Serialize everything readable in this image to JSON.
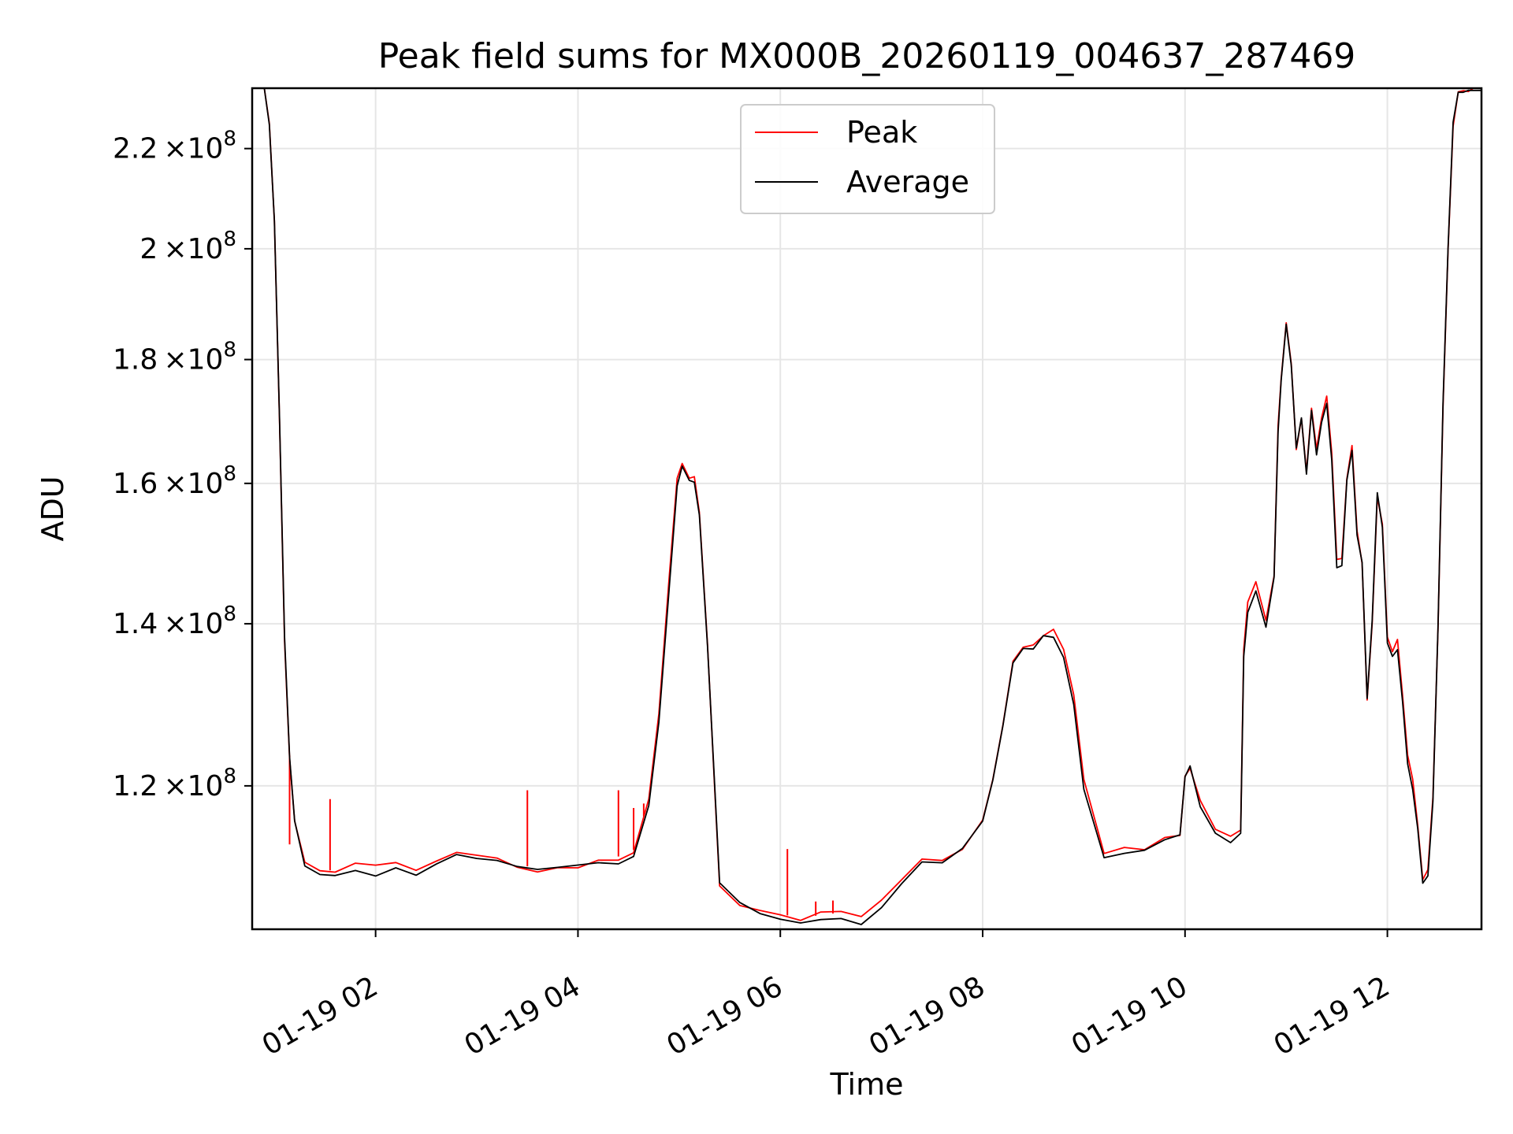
{
  "chart_data": {
    "type": "line",
    "title": "Peak field sums for MX000B_20260119_004637_287469",
    "xlabel": "Time",
    "ylabel": "ADU",
    "x_unit": "hours since 2026-01-19 00:00",
    "xlim": [
      0.78,
      12.93
    ],
    "ylim": [
      104700000.0,
      233000000.0
    ],
    "y_scale": "log",
    "grid": true,
    "legend_position": "top-center",
    "x_ticks": [
      {
        "value": 2,
        "label": "01-19 02"
      },
      {
        "value": 4,
        "label": "01-19 04"
      },
      {
        "value": 6,
        "label": "01-19 06"
      },
      {
        "value": 8,
        "label": "01-19 08"
      },
      {
        "value": 10,
        "label": "01-19 10"
      },
      {
        "value": 12,
        "label": "01-19 12"
      }
    ],
    "y_ticks": [
      {
        "value": 120000000.0,
        "mantissa": "1.2",
        "exponent": "8"
      },
      {
        "value": 140000000.0,
        "mantissa": "1.4",
        "exponent": "8"
      },
      {
        "value": 160000000.0,
        "mantissa": "1.6",
        "exponent": "8"
      },
      {
        "value": 180000000.0,
        "mantissa": "1.8",
        "exponent": "8"
      },
      {
        "value": 200000000.0,
        "mantissa": "2",
        "exponent": "8"
      },
      {
        "value": 220000000.0,
        "mantissa": "2.2",
        "exponent": "8"
      }
    ],
    "tick_times": "×10",
    "x": [
      0.78,
      0.9,
      0.95,
      1.0,
      1.05,
      1.1,
      1.15,
      1.2,
      1.3,
      1.45,
      1.6,
      1.8,
      2.0,
      2.2,
      2.4,
      2.6,
      2.8,
      3.0,
      3.2,
      3.4,
      3.6,
      3.8,
      4.0,
      4.2,
      4.4,
      4.55,
      4.7,
      4.8,
      4.9,
      4.98,
      5.03,
      5.1,
      5.15,
      5.2,
      5.28,
      5.35,
      5.4,
      5.6,
      5.8,
      6.0,
      6.2,
      6.4,
      6.6,
      6.8,
      7.0,
      7.2,
      7.4,
      7.6,
      7.8,
      8.0,
      8.1,
      8.2,
      8.3,
      8.4,
      8.5,
      8.6,
      8.7,
      8.8,
      8.9,
      9.0,
      9.2,
      9.4,
      9.6,
      9.8,
      9.95,
      10.0,
      10.05,
      10.15,
      10.3,
      10.45,
      10.55,
      10.58,
      10.62,
      10.7,
      10.8,
      10.88,
      10.92,
      10.95,
      11.0,
      11.05,
      11.1,
      11.15,
      11.2,
      11.25,
      11.3,
      11.35,
      11.4,
      11.45,
      11.5,
      11.55,
      11.6,
      11.65,
      11.7,
      11.75,
      11.8,
      11.85,
      11.9,
      11.95,
      12.0,
      12.05,
      12.1,
      12.15,
      12.2,
      12.25,
      12.3,
      12.35,
      12.4,
      12.45,
      12.5,
      12.55,
      12.6,
      12.65,
      12.7,
      12.75,
      12.8,
      12.85,
      12.93
    ],
    "series": [
      {
        "name": "Average",
        "color": "#000000",
        "values": [
          233000000.0,
          233000000.0,
          225000000.0,
          205000000.0,
          170000000.0,
          138000000.0,
          123000000.0,
          116000000.0,
          111500000.0,
          110500000.0,
          110200000.0,
          110800000.0,
          110500000.0,
          111000000.0,
          110300000.0,
          111200000.0,
          112000000.0,
          111800000.0,
          111500000.0,
          111000000.0,
          110500000.0,
          110800000.0,
          111000000.0,
          111800000.0,
          111800000.0,
          112500000.0,
          118000000.0,
          128000000.0,
          145000000.0,
          160000000.0,
          162000000.0,
          160000000.0,
          160000000.0,
          155000000.0,
          137000000.0,
          120000000.0,
          109000000.0,
          107000000.0,
          106500000.0,
          105800000.0,
          105500000.0,
          105700000.0,
          106000000.0,
          105500000.0,
          107000000.0,
          109000000.0,
          111500000.0,
          111300000.0,
          113000000.0,
          116000000.0,
          120500000.0,
          127000000.0,
          135000000.0,
          137000000.0,
          137000000.0,
          138500000.0,
          138500000.0,
          136000000.0,
          130000000.0,
          120000000.0,
          112000000.0,
          112500000.0,
          112500000.0,
          114000000.0,
          114500000.0,
          121000000.0,
          122000000.0,
          118000000.0,
          115000000.0,
          114000000.0,
          115000000.0,
          136000000.0,
          142000000.0,
          145000000.0,
          140000000.0,
          146000000.0,
          168000000.0,
          176000000.0,
          186000000.0,
          179000000.0,
          165000000.0,
          170000000.0,
          162000000.0,
          172000000.0,
          165000000.0,
          170000000.0,
          173000000.0,
          164000000.0,
          148000000.0,
          148000000.0,
          160000000.0,
          165000000.0,
          152000000.0,
          148000000.0,
          130000000.0,
          140000000.0,
          158000000.0,
          154000000.0,
          138000000.0,
          136000000.0,
          137000000.0,
          130000000.0,
          123000000.0,
          120000000.0,
          115000000.0,
          109000000.0,
          110000000.0,
          118000000.0,
          139000000.0,
          172000000.0,
          200000000.0,
          225000000.0,
          233000000.0,
          233000000.0,
          233000000.0,
          233000000.0,
          233000000.0
        ]
      },
      {
        "name": "Peak",
        "color": "#ff0000",
        "values": [
          233000000.0,
          233000000.0,
          225000000.0,
          205000000.0,
          170000000.0,
          138000000.0,
          123500000.0,
          116200000.0,
          112000000.0,
          111000000.0,
          110600000.0,
          111200000.0,
          110900000.0,
          111400000.0,
          110700000.0,
          111600000.0,
          112400000.0,
          112200000.0,
          111900000.0,
          111400000.0,
          110900000.0,
          111200000.0,
          111400000.0,
          112200000.0,
          112200000.0,
          112900000.0,
          118400000.0,
          128400000.0,
          145500000.0,
          160500000.0,
          162500000.0,
          160500000.0,
          160500000.0,
          155500000.0,
          137500000.0,
          120400000.0,
          109400000.0,
          107400000.0,
          106900000.0,
          106200000.0,
          105900000.0,
          106100000.0,
          106400000.0,
          105900000.0,
          107400000.0,
          109400000.0,
          111900000.0,
          111700000.0,
          113400000.0,
          116400000.0,
          120900000.0,
          127400000.0,
          135400000.0,
          137400000.0,
          137400000.0,
          138900000.0,
          138900000.0,
          136400000.0,
          130400000.0,
          120400000.0,
          112400000.0,
          112900000.0,
          112900000.0,
          114400000.0,
          114900000.0,
          121400000.0,
          122400000.0,
          118400000.0,
          115400000.0,
          114400000.0,
          115400000.0,
          136400000.0,
          142400000.0,
          145400000.0,
          140400000.0,
          146400000.0,
          168400000.0,
          176400000.0,
          186400000.0,
          179400000.0,
          165400000.0,
          170400000.0,
          162400000.0,
          172400000.0,
          165400000.0,
          170400000.0,
          173400000.0,
          164400000.0,
          148400000.0,
          148400000.0,
          160400000.0,
          165400000.0,
          152400000.0,
          148400000.0,
          130400000.0,
          140400000.0,
          158400000.0,
          154400000.0,
          138400000.0,
          136400000.0,
          137400000.0,
          130400000.0,
          123400000.0,
          120400000.0,
          115400000.0,
          109400000.0,
          110400000.0,
          118400000.0,
          139400000.0,
          172400000.0,
          200400000.0,
          225400000.0,
          233000000.0,
          233000000.0,
          233000000.0,
          233000000.0,
          233000000.0
        ]
      }
    ],
    "spikes": [
      {
        "series": "Peak",
        "x": 1.15,
        "value": 113500000.0
      },
      {
        "series": "Peak",
        "x": 1.55,
        "value": 118500000.0
      },
      {
        "series": "Peak",
        "x": 3.5,
        "value": 119500000.0
      },
      {
        "series": "Peak",
        "x": 4.4,
        "value": 119500000.0
      },
      {
        "series": "Peak",
        "x": 4.55,
        "value": 117500000.0
      },
      {
        "series": "Peak",
        "x": 4.65,
        "value": 118000000.0
      },
      {
        "series": "Peak",
        "x": 6.07,
        "value": 113000000.0
      },
      {
        "series": "Peak",
        "x": 6.35,
        "value": 107500000.0
      },
      {
        "series": "Peak",
        "x": 6.52,
        "value": 107600000.0
      }
    ]
  },
  "legend": {
    "entries": [
      {
        "label": "Peak",
        "color": "#ff0000"
      },
      {
        "label": "Average",
        "color": "#000000"
      }
    ]
  }
}
